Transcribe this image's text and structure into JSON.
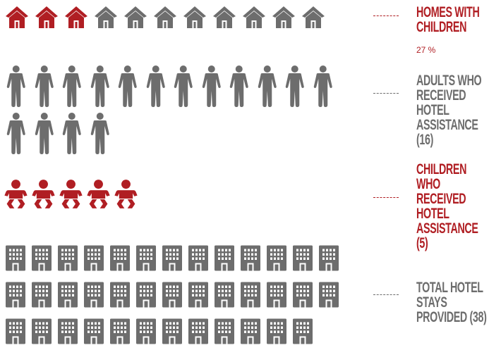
{
  "colors": {
    "red": "#b01e23",
    "gray": "#6d6d6d"
  },
  "chart_data": [
    {
      "type": "pictograph",
      "icon": "house-icon",
      "total_icons": 11,
      "highlighted_icons": 3,
      "label": "HOMES WITH CHILDREN",
      "value_label": "27 %",
      "value": 27
    },
    {
      "type": "pictograph",
      "icon": "adult-person-icon",
      "total_icons": 16,
      "label": "ADULTS WHO RECEIVED HOTEL ASSISTANCE (16)",
      "value": 16
    },
    {
      "type": "pictograph",
      "icon": "baby-icon",
      "total_icons": 5,
      "label": "CHILDREN WHO RECEIVED HOTEL ASSISTANCE (5)",
      "value": 5
    },
    {
      "type": "pictograph",
      "icon": "hotel-building-icon",
      "total_icons": 38,
      "label": "TOTAL HOTEL STAYS PROVIDED (38)",
      "value": 38
    }
  ]
}
